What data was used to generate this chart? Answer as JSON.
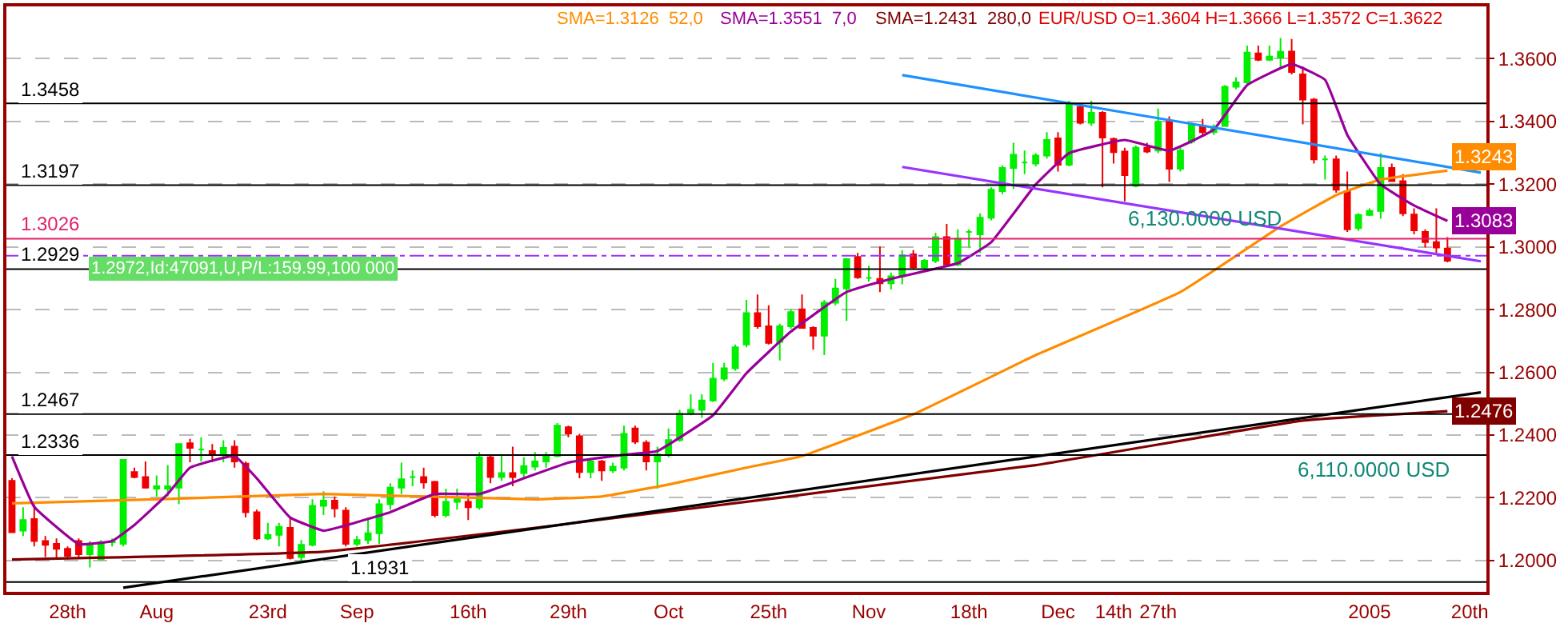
{
  "chart_data": {
    "type": "candlestick",
    "categories": [
      null,
      null,
      null,
      null,
      null,
      "28th",
      null,
      null,
      null,
      null,
      null,
      null,
      null,
      "Aug",
      null,
      null,
      null,
      null,
      null,
      null,
      null,
      null,
      null,
      "23rd",
      null,
      null,
      null,
      null,
      null,
      null,
      null,
      "Sep",
      null,
      null,
      null,
      null,
      null,
      null,
      null,
      null,
      null,
      "16th",
      null,
      null,
      null,
      null,
      null,
      null,
      null,
      null,
      "29th",
      null,
      null,
      null,
      null,
      null,
      null,
      null,
      null,
      "Oct",
      null,
      null,
      null,
      null,
      null,
      null,
      null,
      null,
      "25th",
      null,
      null,
      null,
      null,
      null,
      null,
      null,
      null,
      "Nov",
      null,
      null,
      null,
      null,
      null,
      null,
      null,
      null,
      "18th",
      null,
      null,
      null,
      null,
      null,
      null,
      null,
      "Dec",
      null,
      null,
      null,
      null,
      "14th",
      null,
      null,
      null,
      "27th",
      null,
      null,
      null,
      null,
      null,
      null,
      null,
      null,
      null,
      null,
      null,
      null,
      null,
      null,
      null,
      null,
      null,
      null,
      "2005",
      null,
      null,
      null,
      null,
      null,
      null,
      null,
      null,
      "20th",
      null
    ],
    "ohlc": [
      [
        1.2254,
        1.2262,
        1.209,
        1.209
      ],
      [
        1.2095,
        1.217,
        1.2078,
        1.2129
      ],
      [
        1.2132,
        1.2179,
        1.2045,
        1.2062
      ],
      [
        1.2062,
        1.2078,
        1.2011,
        1.205
      ],
      [
        1.2053,
        1.207,
        1.2003,
        1.2037
      ],
      [
        1.2037,
        1.2045,
        1.2003,
        1.2015
      ],
      [
        1.2062,
        1.207,
        1.2011,
        1.202
      ],
      [
        1.202,
        1.2062,
        1.1978,
        1.2053
      ],
      [
        1.2003,
        1.2065,
        1.2003,
        1.2058
      ],
      [
        1.2058,
        1.207,
        1.2045,
        1.206
      ],
      [
        1.2053,
        1.2321,
        1.2045,
        1.2321
      ],
      [
        1.2282,
        1.2296,
        1.2262,
        1.2266
      ],
      [
        1.2266,
        1.2316,
        1.2229,
        1.2232
      ],
      [
        1.2229,
        1.2271,
        1.2204,
        1.2237
      ],
      [
        1.2229,
        1.2304,
        1.2204,
        1.2237
      ],
      [
        1.2232,
        1.2371,
        1.2179,
        1.2371
      ],
      [
        1.2374,
        1.2388,
        1.2313,
        1.2359
      ],
      [
        1.2354,
        1.2393,
        1.2316,
        1.2354
      ],
      [
        1.2349,
        1.2371,
        1.2313,
        1.2337
      ],
      [
        1.2337,
        1.2383,
        1.2313,
        1.2359
      ],
      [
        1.2363,
        1.2383,
        1.2296,
        1.2316
      ],
      [
        1.2309,
        1.2316,
        1.2137,
        1.2154
      ],
      [
        1.2154,
        1.2162,
        1.2065,
        1.207
      ],
      [
        1.207,
        1.212,
        1.2065,
        1.2082
      ],
      [
        1.2082,
        1.212,
        1.2045,
        1.2107
      ],
      [
        1.2104,
        1.2137,
        1.2003,
        1.2008
      ],
      [
        1.2011,
        1.2065,
        1.1995,
        1.205
      ],
      [
        1.205,
        1.2195,
        1.2045,
        1.2174
      ],
      [
        1.2174,
        1.2221,
        1.2145,
        1.2191
      ],
      [
        1.2191,
        1.2204,
        1.2137,
        1.2166
      ],
      [
        1.2159,
        1.217,
        1.2045,
        1.2053
      ],
      [
        1.2053,
        1.2078,
        1.2045,
        1.2065
      ],
      [
        1.2065,
        1.2137,
        1.2053,
        1.2087
      ],
      [
        1.2087,
        1.2195,
        1.2053,
        1.2179
      ],
      [
        1.2179,
        1.2246,
        1.2162,
        1.2232
      ],
      [
        1.2232,
        1.2312,
        1.2212,
        1.2259
      ],
      [
        1.2266,
        1.2287,
        1.2237,
        1.2266
      ],
      [
        1.2266,
        1.2296,
        1.2229,
        1.2249
      ],
      [
        1.2251,
        1.2254,
        1.2137,
        1.2145
      ],
      [
        1.2145,
        1.2229,
        1.2137,
        1.2187
      ],
      [
        1.2187,
        1.2229,
        1.2162,
        1.2195
      ],
      [
        1.2187,
        1.2212,
        1.2129,
        1.217
      ],
      [
        1.217,
        1.2346,
        1.2162,
        1.2329
      ],
      [
        1.2329,
        1.2338,
        1.2246,
        1.2266
      ],
      [
        1.2266,
        1.2338,
        1.2254,
        1.2279
      ],
      [
        1.2279,
        1.2363,
        1.2237,
        1.2266
      ],
      [
        1.2279,
        1.2329,
        1.2262,
        1.2301
      ],
      [
        1.2299,
        1.2346,
        1.2287,
        1.2316
      ],
      [
        1.2316,
        1.2346,
        1.2296,
        1.2333
      ],
      [
        1.2333,
        1.2438,
        1.2329,
        1.243
      ],
      [
        1.2425,
        1.243,
        1.2393,
        1.2405
      ],
      [
        1.2396,
        1.2404,
        1.2262,
        1.2282
      ],
      [
        1.2282,
        1.2321,
        1.2262,
        1.2316
      ],
      [
        1.2316,
        1.2321,
        1.2254,
        1.2287
      ],
      [
        1.2287,
        1.2312,
        1.2279,
        1.2299
      ],
      [
        1.2296,
        1.243,
        1.2287,
        1.2404
      ],
      [
        1.2421,
        1.243,
        1.2371,
        1.2379
      ],
      [
        1.2376,
        1.2383,
        1.2287,
        1.2316
      ],
      [
        1.2316,
        1.2363,
        1.2229,
        1.2338
      ],
      [
        1.2338,
        1.2421,
        1.2329,
        1.2384
      ],
      [
        1.2384,
        1.248,
        1.2379,
        1.2468
      ],
      [
        1.2468,
        1.253,
        1.2463,
        1.248
      ],
      [
        1.248,
        1.253,
        1.2455,
        1.251
      ],
      [
        1.251,
        1.263,
        1.2505,
        1.258
      ],
      [
        1.258,
        1.263,
        1.2572,
        1.2613
      ],
      [
        1.2613,
        1.2689,
        1.2605,
        1.268
      ],
      [
        1.2689,
        1.2831,
        1.268,
        1.2789
      ],
      [
        1.2789,
        1.2848,
        1.2739,
        1.2747
      ],
      [
        1.2747,
        1.2814,
        1.2689,
        1.2694
      ],
      [
        1.2697,
        1.2755,
        1.2638,
        1.2747
      ],
      [
        1.2747,
        1.2801,
        1.2739,
        1.2792
      ],
      [
        1.2801,
        1.2848,
        1.2739,
        1.2742
      ],
      [
        1.2742,
        1.2747,
        1.2672,
        1.2717
      ],
      [
        1.2717,
        1.2831,
        1.2655,
        1.2822
      ],
      [
        1.2822,
        1.2898,
        1.2814,
        1.2867
      ],
      [
        1.2867,
        1.2965,
        1.2764,
        1.2961
      ],
      [
        1.2968,
        1.2981,
        1.2898,
        1.2903
      ],
      [
        1.2901,
        1.294,
        1.2889,
        1.2901
      ],
      [
        1.2898,
        1.3001,
        1.2856,
        1.2884
      ],
      [
        1.2884,
        1.2918,
        1.2864,
        1.2906
      ],
      [
        1.2906,
        1.299,
        1.2881,
        1.2973
      ],
      [
        1.2976,
        1.299,
        1.2931,
        1.2935
      ],
      [
        1.2935,
        1.2961,
        1.2928,
        1.2956
      ],
      [
        1.2956,
        1.3045,
        1.2948,
        1.3031
      ],
      [
        1.3031,
        1.3073,
        1.2939,
        1.2944
      ],
      [
        1.2944,
        1.3056,
        1.2939,
        1.3026
      ],
      [
        1.3048,
        1.3056,
        1.2998,
        1.3048
      ],
      [
        1.304,
        1.3107,
        1.2981,
        1.3093
      ],
      [
        1.3093,
        1.319,
        1.3085,
        1.3182
      ],
      [
        1.3178,
        1.326,
        1.3168,
        1.3252
      ],
      [
        1.3252,
        1.3332,
        1.3185,
        1.3294
      ],
      [
        1.3269,
        1.3307,
        1.3232,
        1.3269
      ],
      [
        1.3266,
        1.3299,
        1.3257,
        1.3291
      ],
      [
        1.3291,
        1.3366,
        1.3282,
        1.3341
      ],
      [
        1.3346,
        1.3366,
        1.324,
        1.3262
      ],
      [
        1.3262,
        1.3466,
        1.3257,
        1.3458
      ],
      [
        1.3446,
        1.3458,
        1.3391,
        1.3396
      ],
      [
        1.3396,
        1.3466,
        1.3386,
        1.3428
      ],
      [
        1.3428,
        1.3433,
        1.319,
        1.3349
      ],
      [
        1.3344,
        1.3349,
        1.3266,
        1.3302
      ],
      [
        1.3304,
        1.3316,
        1.3145,
        1.3229
      ],
      [
        1.3195,
        1.3324,
        1.319,
        1.3316
      ],
      [
        1.3316,
        1.3332,
        1.3299,
        1.3304
      ],
      [
        1.3307,
        1.3441,
        1.3299,
        1.3399
      ],
      [
        1.3399,
        1.3416,
        1.3207,
        1.3249
      ],
      [
        1.3249,
        1.3316,
        1.324,
        1.3307
      ],
      [
        1.3336,
        1.3396,
        1.3329,
        1.3391
      ],
      [
        1.3386,
        1.3408,
        1.3357,
        1.3366
      ],
      [
        1.3366,
        1.3391,
        1.3357,
        1.3383
      ],
      [
        1.3386,
        1.3516,
        1.3383,
        1.3511
      ],
      [
        1.3511,
        1.3541,
        1.3503,
        1.3525
      ],
      [
        1.3525,
        1.3642,
        1.3516,
        1.362
      ],
      [
        1.3617,
        1.3642,
        1.3592,
        1.3597
      ],
      [
        1.3597,
        1.3642,
        1.3592,
        1.3607
      ],
      [
        1.3604,
        1.3666,
        1.3572,
        1.3622
      ],
      [
        1.3623,
        1.3663,
        1.355,
        1.3558
      ],
      [
        1.355,
        1.3575,
        1.3391,
        1.347
      ],
      [
        1.347,
        1.3475,
        1.3266,
        1.3279
      ],
      [
        1.3279,
        1.3291,
        1.3215,
        1.3279
      ],
      [
        1.3279,
        1.3291,
        1.3173,
        1.3182
      ],
      [
        1.3178,
        1.324,
        1.3048,
        1.3056
      ],
      [
        1.306,
        1.3107,
        1.3051,
        1.3102
      ],
      [
        1.3102,
        1.3123,
        1.3098,
        1.3115
      ],
      [
        1.3115,
        1.3299,
        1.309,
        1.3252
      ],
      [
        1.3252,
        1.3266,
        1.3207,
        1.321
      ],
      [
        1.321,
        1.3232,
        1.3098,
        1.3107
      ],
      [
        1.3103,
        1.3123,
        1.304,
        1.3053
      ],
      [
        1.3048,
        1.3056,
        1.2998,
        1.3015
      ],
      [
        1.3015,
        1.3123,
        1.2981,
        1.2998
      ],
      [
        1.2995,
        1.3031,
        1.2951,
        1.2956
      ],
      null,
      null,
      null
    ],
    "colors": [
      "#ee0000",
      "#00ee00",
      "#ee0000",
      "#ee0000",
      "#ee0000",
      "#ee0000",
      "#ee0000",
      "#00ee00",
      "#00ee00",
      "#00ee00",
      "#00ee00",
      "#ee0000",
      "#ee0000",
      "#00ee00",
      "#00ee00",
      "#00ee00",
      "#ee0000",
      "#00ee00",
      "#ee0000",
      "#00ee00",
      "#ee0000",
      "#ee0000",
      "#ee0000",
      "#00ee00",
      "#00ee00",
      "#ee0000",
      "#00ee00",
      "#00ee00",
      "#00ee00",
      "#ee0000",
      "#ee0000",
      "#00ee00",
      "#00ee00",
      "#00ee00",
      "#00ee00",
      "#00ee00",
      "#00ee00",
      "#ee0000",
      "#ee0000",
      "#00ee00",
      "#00ee00",
      "#ee0000",
      "#00ee00",
      "#ee0000",
      "#00ee00",
      "#ee0000",
      "#00ee00",
      "#00ee00",
      "#00ee00",
      "#00ee00",
      "#ee0000",
      "#ee0000",
      "#00ee00",
      "#ee0000",
      "#00ee00",
      "#00ee00",
      "#ee0000",
      "#ee0000",
      "#00ee00",
      "#00ee00",
      "#00ee00",
      "#00ee00",
      "#00ee00",
      "#00ee00",
      "#00ee00",
      "#00ee00",
      "#00ee00",
      "#ee0000",
      "#ee0000",
      "#00ee00",
      "#00ee00",
      "#ee0000",
      "#ee0000",
      "#00ee00",
      "#00ee00",
      "#00ee00",
      "#ee0000",
      "#00ee00",
      "#ee0000",
      "#00ee00",
      "#00ee00",
      "#ee0000",
      "#00ee00",
      "#00ee00",
      "#ee0000",
      "#00ee00",
      "#00ee00",
      "#00ee00",
      "#00ee00",
      "#00ee00",
      "#00ee00",
      "#00ee00",
      "#00ee00",
      "#00ee00",
      "#ee0000",
      "#00ee00",
      "#ee0000",
      "#00ee00",
      "#ee0000",
      "#ee0000",
      "#ee0000",
      "#00ee00",
      "#ee0000",
      "#00ee00",
      "#ee0000",
      "#00ee00",
      "#00ee00",
      "#ee0000",
      "#00ee00",
      "#00ee00",
      "#00ee00",
      "#00ee00",
      "#ee0000",
      "#00ee00",
      "#00ee00",
      "#ee0000",
      "#ee0000",
      "#ee0000",
      "#00ee00",
      "#ee0000",
      "#ee0000",
      "#00ee00",
      "#00ee00",
      "#00ee00",
      "#ee0000",
      "#ee0000",
      "#ee0000",
      "#ee0000",
      "#ee0000",
      "#ee0000",
      null,
      null,
      null
    ],
    "series": [
      {
        "type": "line",
        "color": "#ff8c00",
        "values": [
          1.2182,
          null,
          null,
          null,
          null,
          null,
          null,
          null,
          null,
          null,
          null,
          null,
          null,
          null,
          1.2196,
          null,
          null,
          null,
          null,
          null,
          null,
          null,
          null,
          null,
          null,
          null,
          null,
          null,
          1.2212,
          null,
          null,
          null,
          null,
          null,
          null,
          null,
          null,
          null,
          null,
          null,
          null,
          null,
          null,
          null,
          null,
          null,
          null,
          1.2195,
          null,
          null,
          null,
          null,
          null,
          1.2204,
          null,
          null,
          null,
          null,
          null,
          1.2242,
          null,
          null,
          null,
          null,
          null,
          null,
          1.2296,
          null,
          null,
          null,
          null,
          1.2333,
          null,
          null,
          null,
          null,
          null,
          null,
          null,
          null,
          null,
          1.2466,
          null,
          null,
          null,
          null,
          null,
          null,
          null,
          null,
          null,
          1.2638,
          1.2655,
          null,
          null,
          null,
          null,
          null,
          null,
          null,
          null,
          null,
          null,
          null,
          null,
          1.2856,
          null,
          null,
          null,
          null,
          null,
          null,
          null,
          null,
          1.3065,
          null,
          null,
          null,
          null,
          1.3165,
          null,
          null,
          null,
          1.3215,
          null,
          null,
          null,
          null,
          null,
          1.3243,
          null,
          null,
          null
        ],
        "value_labels": [
          null,
          null,
          null,
          null,
          null,
          null,
          null,
          null,
          null,
          null,
          null,
          null,
          null,
          null,
          null,
          null,
          null,
          null,
          null,
          null,
          null,
          null,
          null,
          null,
          null,
          null,
          null,
          null,
          null,
          null,
          null,
          null,
          null,
          null,
          null,
          null,
          null,
          null,
          null,
          null,
          null,
          null,
          null,
          null,
          null,
          null,
          null,
          null,
          null,
          null,
          null,
          null,
          null,
          null,
          null,
          null,
          null,
          null,
          null,
          null,
          null,
          null,
          null,
          null,
          null,
          null,
          null,
          null,
          null,
          null,
          null,
          null,
          null,
          null,
          null,
          null,
          null,
          null,
          null,
          null,
          null,
          null,
          null,
          null,
          null,
          null,
          null,
          null,
          null,
          null,
          null,
          null,
          null,
          null,
          null,
          null,
          null,
          null,
          null,
          null,
          null,
          null,
          null,
          null,
          null,
          null,
          null,
          null,
          null,
          null,
          null,
          null,
          null,
          null,
          null,
          null,
          null,
          null,
          null,
          null,
          null,
          null,
          null,
          null,
          null,
          null,
          null,
          null,
          null,
          "1.3243",
          null,
          null,
          null
        ]
      },
      {
        "type": "line",
        "color": "#990099",
        "values": [
          1.2332,
          null,
          1.2171,
          null,
          null,
          null,
          1.2052,
          null,
          null,
          1.2062,
          null,
          1.2113,
          null,
          null,
          1.2212,
          null,
          1.2296,
          null,
          null,
          null,
          1.2333,
          null,
          1.2262,
          null,
          null,
          1.2137,
          null,
          null,
          1.2095,
          null,
          1.2112,
          null,
          null,
          null,
          1.2154,
          null,
          null,
          null,
          1.2212,
          null,
          null,
          null,
          1.2212,
          null,
          null,
          null,
          1.2262,
          null,
          null,
          null,
          1.2312,
          null,
          null,
          null,
          null,
          1.2337,
          null,
          null,
          1.2349,
          null,
          null,
          null,
          null,
          1.2463,
          null,
          null,
          1.2597,
          null,
          null,
          null,
          1.273,
          null,
          null,
          null,
          null,
          1.2856,
          null,
          null,
          null,
          1.2898,
          null,
          null,
          null,
          null,
          null,
          1.2948,
          null,
          null,
          1.3015,
          null,
          null,
          null,
          1.3199,
          null,
          null,
          1.3299,
          null,
          null,
          null,
          null,
          1.3341,
          null,
          null,
          null,
          1.3307,
          null,
          null,
          null,
          1.3374,
          null,
          null,
          1.3516,
          null,
          null,
          null,
          1.3583,
          null,
          null,
          1.3533,
          null,
          1.3357,
          null,
          null,
          1.3199,
          null,
          null,
          1.3132,
          null,
          null,
          1.3083,
          null,
          null,
          null
        ],
        "value_labels": [
          null,
          null,
          null,
          null,
          null,
          null,
          null,
          null,
          null,
          null,
          null,
          null,
          null,
          null,
          null,
          null,
          null,
          null,
          null,
          null,
          null,
          null,
          null,
          null,
          null,
          null,
          null,
          null,
          null,
          null,
          null,
          null,
          null,
          null,
          null,
          null,
          null,
          null,
          null,
          null,
          null,
          null,
          null,
          null,
          null,
          null,
          null,
          null,
          null,
          null,
          null,
          null,
          null,
          null,
          null,
          null,
          null,
          null,
          null,
          null,
          null,
          null,
          null,
          null,
          null,
          null,
          null,
          null,
          null,
          null,
          null,
          null,
          null,
          null,
          null,
          null,
          null,
          null,
          null,
          null,
          null,
          null,
          null,
          null,
          null,
          null,
          null,
          null,
          null,
          null,
          null,
          null,
          null,
          null,
          null,
          null,
          null,
          null,
          null,
          null,
          null,
          null,
          null,
          null,
          null,
          null,
          null,
          null,
          null,
          null,
          null,
          null,
          null,
          null,
          null,
          null,
          null,
          null,
          null,
          null,
          null,
          null,
          null,
          null,
          null,
          null,
          null,
          null,
          null,
          "1.3083",
          null,
          null,
          null
        ]
      },
      {
        "type": "line",
        "color": "#800000",
        "values": [
          1.2003,
          null,
          null,
          null,
          null,
          null,
          null,
          null,
          null,
          null,
          null,
          null,
          null,
          null,
          null,
          null,
          null,
          null,
          null,
          null,
          null,
          null,
          null,
          null,
          null,
          null,
          null,
          null,
          1.2028,
          null,
          null,
          null,
          null,
          null,
          null,
          null,
          null,
          null,
          null,
          null,
          null,
          null,
          null,
          null,
          null,
          null,
          null,
          1.2104,
          null,
          null,
          null,
          null,
          null,
          null,
          null,
          null,
          null,
          null,
          null,
          null,
          null,
          null,
          null,
          null,
          null,
          null,
          null,
          null,
          null,
          null,
          null,
          null,
          null,
          null,
          null,
          null,
          null,
          null,
          null,
          null,
          null,
          null,
          null,
          null,
          null,
          null,
          null,
          null,
          null,
          null,
          null,
          null,
          1.2304,
          null,
          null,
          null,
          null,
          null,
          null,
          null,
          null,
          null,
          null,
          null,
          null,
          null,
          null,
          null,
          null,
          null,
          null,
          null,
          null,
          null,
          null,
          null,
          1.2446,
          null,
          null,
          null,
          null,
          null,
          null,
          null,
          null,
          null,
          null,
          null,
          null,
          1.2476,
          null,
          null,
          null
        ],
        "value_labels": [
          null,
          null,
          null,
          null,
          null,
          null,
          null,
          null,
          null,
          null,
          null,
          null,
          null,
          null,
          null,
          null,
          null,
          null,
          null,
          null,
          null,
          null,
          null,
          null,
          null,
          null,
          null,
          null,
          null,
          null,
          null,
          null,
          null,
          null,
          null,
          null,
          null,
          null,
          null,
          null,
          null,
          null,
          null,
          null,
          null,
          null,
          null,
          null,
          null,
          null,
          null,
          null,
          null,
          null,
          null,
          null,
          null,
          null,
          null,
          null,
          null,
          null,
          null,
          null,
          null,
          null,
          null,
          null,
          null,
          null,
          null,
          null,
          null,
          null,
          null,
          null,
          null,
          null,
          null,
          null,
          null,
          null,
          null,
          null,
          null,
          null,
          null,
          null,
          null,
          null,
          null,
          null,
          null,
          null,
          null,
          null,
          null,
          null,
          null,
          null,
          null,
          null,
          null,
          null,
          null,
          null,
          null,
          null,
          null,
          null,
          null,
          null,
          null,
          null,
          null,
          null,
          null,
          null,
          null,
          null,
          null,
          null,
          null,
          null,
          null,
          null,
          null,
          null,
          null,
          "1.2476",
          null,
          null,
          null
        ]
      },
      {
        "type": "line",
        "color": "#000000",
        "values": [
          null,
          null,
          null,
          null,
          null,
          null,
          null,
          null,
          null,
          null,
          1.1913,
          null,
          null,
          null,
          null,
          null,
          null,
          null,
          null,
          null,
          null,
          null,
          null,
          null,
          null,
          null,
          null,
          null,
          null,
          null,
          null,
          null,
          null,
          null,
          null,
          null,
          null,
          null,
          null,
          null,
          null,
          null,
          null,
          null,
          null,
          null,
          null,
          null,
          null,
          null,
          null,
          null,
          null,
          null,
          null,
          null,
          null,
          null,
          null,
          null,
          null,
          null,
          null,
          null,
          null,
          null,
          null,
          null,
          null,
          null,
          null,
          null,
          null,
          null,
          null,
          null,
          null,
          null,
          null,
          null,
          null,
          null,
          null,
          null,
          null,
          null,
          null,
          null,
          null,
          null,
          null,
          null,
          null,
          null,
          null,
          null,
          null,
          null,
          null,
          null,
          null,
          null,
          null,
          null,
          null,
          null,
          null,
          null,
          null,
          null,
          null,
          null,
          null,
          null,
          null,
          null,
          null,
          null,
          null,
          null,
          null,
          null,
          null,
          null,
          null,
          null,
          null,
          null,
          null,
          null,
          null,
          null,
          1.2536
        ]
      },
      {
        "type": "line",
        "color": "#9933ff",
        "values": [
          null,
          null,
          null,
          null,
          null,
          null,
          null,
          null,
          null,
          null,
          null,
          null,
          null,
          null,
          null,
          null,
          null,
          null,
          null,
          null,
          null,
          null,
          null,
          null,
          null,
          null,
          null,
          null,
          null,
          null,
          null,
          null,
          null,
          null,
          null,
          null,
          null,
          null,
          null,
          null,
          null,
          null,
          null,
          null,
          null,
          null,
          null,
          null,
          null,
          null,
          null,
          null,
          null,
          null,
          null,
          null,
          null,
          null,
          null,
          null,
          null,
          null,
          null,
          null,
          null,
          null,
          null,
          null,
          null,
          null,
          null,
          null,
          null,
          null,
          null,
          null,
          null,
          null,
          null,
          null,
          1.3255,
          null,
          null,
          null,
          null,
          null,
          null,
          null,
          null,
          null,
          null,
          null,
          null,
          null,
          null,
          null,
          null,
          null,
          null,
          null,
          null,
          null,
          null,
          null,
          null,
          null,
          null,
          null,
          null,
          null,
          null,
          null,
          null,
          null,
          null,
          null,
          null,
          null,
          null,
          null,
          null,
          null,
          null,
          null,
          null,
          null,
          null,
          null,
          null,
          null,
          null,
          null,
          1.2954
        ]
      },
      {
        "type": "line",
        "color": "#1e90ff",
        "values": [
          null,
          null,
          null,
          null,
          null,
          null,
          null,
          null,
          null,
          null,
          null,
          null,
          null,
          null,
          null,
          null,
          null,
          null,
          null,
          null,
          null,
          null,
          null,
          null,
          null,
          null,
          null,
          null,
          null,
          null,
          null,
          null,
          null,
          null,
          null,
          null,
          null,
          null,
          null,
          null,
          null,
          null,
          null,
          null,
          null,
          null,
          null,
          null,
          null,
          null,
          null,
          null,
          null,
          null,
          null,
          null,
          null,
          null,
          null,
          null,
          null,
          null,
          null,
          null,
          null,
          null,
          null,
          null,
          null,
          null,
          null,
          null,
          null,
          null,
          null,
          null,
          null,
          null,
          null,
          null,
          1.3548,
          null,
          null,
          null,
          null,
          null,
          null,
          null,
          null,
          null,
          null,
          null,
          null,
          null,
          null,
          null,
          null,
          null,
          null,
          null,
          null,
          null,
          null,
          null,
          null,
          null,
          null,
          null,
          null,
          null,
          null,
          null,
          null,
          null,
          null,
          null,
          null,
          null,
          null,
          null,
          null,
          null,
          null,
          null,
          null,
          null,
          null,
          null,
          null,
          null,
          null,
          null,
          1.3237
        ]
      }
    ],
    "ref_lines": [
      {
        "axis": "y",
        "value": 1.3458,
        "label": "1.3458",
        "color": "#000000"
      },
      {
        "axis": "y",
        "value": 1.3197,
        "label": "1.3197",
        "color": "#000000"
      },
      {
        "axis": "y",
        "value": 1.3026,
        "label": "1.3026",
        "color": "#e0206a"
      },
      {
        "axis": "y",
        "value": 1.2972,
        "label": "1.2972,Id:47091,U,P/L:159.99,100 000",
        "color": "#9933ff",
        "line_style": "dashed"
      },
      {
        "axis": "y",
        "value": 1.2929,
        "label": "1.2929",
        "color": "#000000"
      },
      {
        "axis": "y",
        "value": 1.2467,
        "label": "1.2467",
        "color": "#000000"
      },
      {
        "axis": "y",
        "value": 1.2336,
        "label": "1.2336",
        "color": "#000000"
      },
      {
        "axis": "y",
        "value": 1.1931,
        "label": "1.1931",
        "color": "#000000"
      }
    ],
    "annotations": [
      "SMA=1.3126  52,0",
      "SMA=1.3551  7,0",
      "SMA=1.2431  280,0",
      "EUR/USD O=1.3604 H=1.3666 L=1.3572 C=1.3622",
      "6,130.0000 USD",
      "6,110.0000 USD"
    ],
    "ylim": [
      1.19,
      1.3767
    ],
    "yticks": [
      {
        "value": 1.2,
        "label": "1.2000"
      },
      {
        "value": 1.22,
        "label": "1.2200"
      },
      {
        "value": 1.24,
        "label": "1.2400"
      },
      {
        "value": 1.26,
        "label": "1.2600"
      },
      {
        "value": 1.28,
        "label": "1.2800"
      },
      {
        "value": 1.3,
        "label": "1.3000"
      },
      {
        "value": 1.32,
        "label": "1.3200"
      },
      {
        "value": 1.34,
        "label": "1.3400"
      },
      {
        "value": 1.36,
        "label": "1.3600"
      }
    ],
    "grid": "y"
  }
}
